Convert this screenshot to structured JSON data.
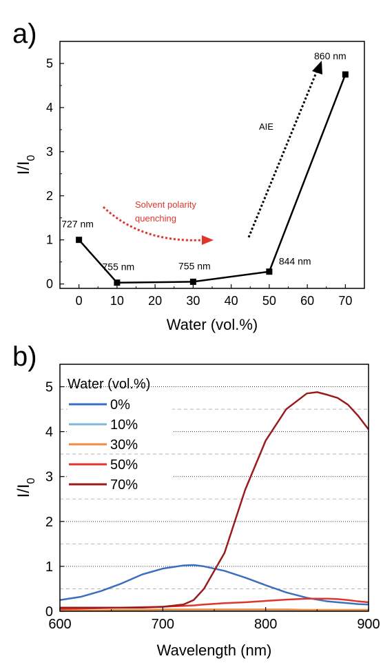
{
  "chart_data": [
    {
      "panel_label": "a)",
      "type": "line",
      "xlabel": "Water (vol.%)",
      "ylabel_main": "I/I",
      "ylabel_sub": "0",
      "xlim": [
        -5,
        75
      ],
      "ylim": [
        -0.1,
        5.5
      ],
      "xticks": [
        0,
        10,
        20,
        30,
        40,
        50,
        60,
        70
      ],
      "yticks": [
        0,
        1,
        2,
        3,
        4,
        5
      ],
      "x": [
        0,
        10,
        30,
        50,
        70
      ],
      "y": [
        1.0,
        0.03,
        0.05,
        0.28,
        4.75
      ],
      "point_labels": [
        "727 nm",
        "755 nm",
        "755 nm",
        "844 nm",
        "860 nm"
      ],
      "annotations": {
        "polarity": [
          "Solvent polarity",
          "quenching"
        ],
        "aie": "AIE"
      },
      "colors": {
        "line": "#000000",
        "polarity": "#e0352b",
        "aie": "#000000"
      }
    },
    {
      "panel_label": "b)",
      "type": "line",
      "xlabel": "Wavelength (nm)",
      "ylabel_main": "I/I",
      "ylabel_sub": "0",
      "xlim": [
        600,
        900
      ],
      "ylim": [
        0,
        5.5
      ],
      "xticks": [
        600,
        700,
        800,
        900
      ],
      "yticks": [
        0,
        1,
        2,
        3,
        4,
        5
      ],
      "grid": true,
      "legend_title": "Water (vol.%)",
      "legend_position": "top-left",
      "x": [
        600,
        620,
        640,
        660,
        680,
        700,
        720,
        730,
        740,
        760,
        780,
        800,
        820,
        840,
        850,
        860,
        870,
        880,
        890,
        900
      ],
      "series": [
        {
          "name": "0%",
          "color": "#3a6fc0",
          "values": [
            0.25,
            0.32,
            0.45,
            0.62,
            0.82,
            0.95,
            1.02,
            1.03,
            1.0,
            0.9,
            0.75,
            0.58,
            0.42,
            0.3,
            0.26,
            0.22,
            0.2,
            0.18,
            0.16,
            0.15
          ]
        },
        {
          "name": "10%",
          "color": "#7fb8d8",
          "values": [
            0.02,
            0.02,
            0.02,
            0.02,
            0.02,
            0.02,
            0.02,
            0.02,
            0.02,
            0.02,
            0.02,
            0.02,
            0.02,
            0.02,
            0.02,
            0.02,
            0.02,
            0.02,
            0.02,
            0.02
          ]
        },
        {
          "name": "30%",
          "color": "#f08a3c",
          "values": [
            0.02,
            0.02,
            0.02,
            0.03,
            0.03,
            0.04,
            0.04,
            0.04,
            0.04,
            0.04,
            0.04,
            0.04,
            0.04,
            0.03,
            0.03,
            0.03,
            0.03,
            0.03,
            0.03,
            0.03
          ]
        },
        {
          "name": "50%",
          "color": "#e0352b",
          "values": [
            0.05,
            0.06,
            0.07,
            0.08,
            0.09,
            0.1,
            0.12,
            0.13,
            0.15,
            0.18,
            0.2,
            0.23,
            0.26,
            0.28,
            0.28,
            0.28,
            0.27,
            0.25,
            0.22,
            0.2
          ]
        },
        {
          "name": "70%",
          "color": "#9b1b1b",
          "values": [
            0.08,
            0.08,
            0.08,
            0.08,
            0.08,
            0.1,
            0.15,
            0.25,
            0.5,
            1.3,
            2.7,
            3.8,
            4.5,
            4.85,
            4.88,
            4.82,
            4.75,
            4.6,
            4.35,
            4.05
          ]
        }
      ]
    }
  ]
}
